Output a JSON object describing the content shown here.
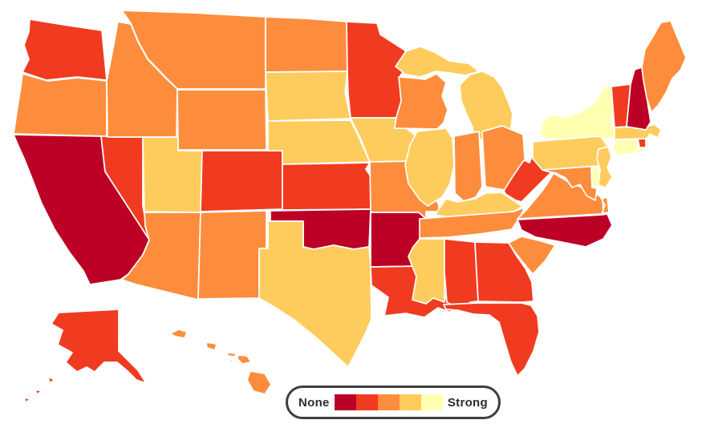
{
  "chart_data": {
    "type": "choropleth",
    "region": "United States",
    "legend": {
      "left_label": "None",
      "right_label": "Strong"
    },
    "scale_description": "5-level ordinal scale from None (dark red, level 1) to Strong (pale yellow, level 5)",
    "colors": [
      "#bd0026",
      "#f03b20",
      "#fd8d3c",
      "#fecc5c",
      "#ffffb2"
    ],
    "states": [
      {
        "id": "WA",
        "name": "Washington",
        "level": 2
      },
      {
        "id": "OR",
        "name": "Oregon",
        "level": 3
      },
      {
        "id": "CA",
        "name": "California",
        "level": 1
      },
      {
        "id": "NV",
        "name": "Nevada",
        "level": 2
      },
      {
        "id": "ID",
        "name": "Idaho",
        "level": 3
      },
      {
        "id": "MT",
        "name": "Montana",
        "level": 3
      },
      {
        "id": "WY",
        "name": "Wyoming",
        "level": 3
      },
      {
        "id": "UT",
        "name": "Utah",
        "level": 4
      },
      {
        "id": "CO",
        "name": "Colorado",
        "level": 2
      },
      {
        "id": "AZ",
        "name": "Arizona",
        "level": 3
      },
      {
        "id": "NM",
        "name": "New Mexico",
        "level": 3
      },
      {
        "id": "ND",
        "name": "North Dakota",
        "level": 3
      },
      {
        "id": "SD",
        "name": "South Dakota",
        "level": 4
      },
      {
        "id": "NE",
        "name": "Nebraska",
        "level": 4
      },
      {
        "id": "KS",
        "name": "Kansas",
        "level": 2
      },
      {
        "id": "OK",
        "name": "Oklahoma",
        "level": 1
      },
      {
        "id": "TX",
        "name": "Texas",
        "level": 4
      },
      {
        "id": "MN",
        "name": "Minnesota",
        "level": 2
      },
      {
        "id": "IA",
        "name": "Iowa",
        "level": 4
      },
      {
        "id": "MO",
        "name": "Missouri",
        "level": 3
      },
      {
        "id": "AR",
        "name": "Arkansas",
        "level": 1
      },
      {
        "id": "LA",
        "name": "Louisiana",
        "level": 2
      },
      {
        "id": "WI",
        "name": "Wisconsin",
        "level": 3
      },
      {
        "id": "MI",
        "name": "Michigan",
        "level": 4
      },
      {
        "id": "IL",
        "name": "Illinois",
        "level": 4
      },
      {
        "id": "IN",
        "name": "Indiana",
        "level": 3
      },
      {
        "id": "OH",
        "name": "Ohio",
        "level": 3
      },
      {
        "id": "KY",
        "name": "Kentucky",
        "level": 4
      },
      {
        "id": "TN",
        "name": "Tennessee",
        "level": 3
      },
      {
        "id": "MS",
        "name": "Mississippi",
        "level": 4
      },
      {
        "id": "AL",
        "name": "Alabama",
        "level": 2
      },
      {
        "id": "GA",
        "name": "Georgia",
        "level": 2
      },
      {
        "id": "FL",
        "name": "Florida",
        "level": 2
      },
      {
        "id": "SC",
        "name": "South Carolina",
        "level": 3
      },
      {
        "id": "NC",
        "name": "North Carolina",
        "level": 1
      },
      {
        "id": "VA",
        "name": "Virginia",
        "level": 3
      },
      {
        "id": "WV",
        "name": "West Virginia",
        "level": 2
      },
      {
        "id": "MD",
        "name": "Maryland",
        "level": 3
      },
      {
        "id": "DE",
        "name": "Delaware",
        "level": 5
      },
      {
        "id": "PA",
        "name": "Pennsylvania",
        "level": 4
      },
      {
        "id": "NJ",
        "name": "New Jersey",
        "level": 4
      },
      {
        "id": "NY",
        "name": "New York",
        "level": 5
      },
      {
        "id": "CT",
        "name": "Connecticut",
        "level": 5
      },
      {
        "id": "RI",
        "name": "Rhode Island",
        "level": 2
      },
      {
        "id": "MA",
        "name": "Massachusetts",
        "level": 4
      },
      {
        "id": "VT",
        "name": "Vermont",
        "level": 2
      },
      {
        "id": "NH",
        "name": "New Hampshire",
        "level": 1
      },
      {
        "id": "ME",
        "name": "Maine",
        "level": 3
      },
      {
        "id": "AK",
        "name": "Alaska",
        "level": 2
      },
      {
        "id": "HI",
        "name": "Hawaii",
        "level": 3
      }
    ]
  }
}
